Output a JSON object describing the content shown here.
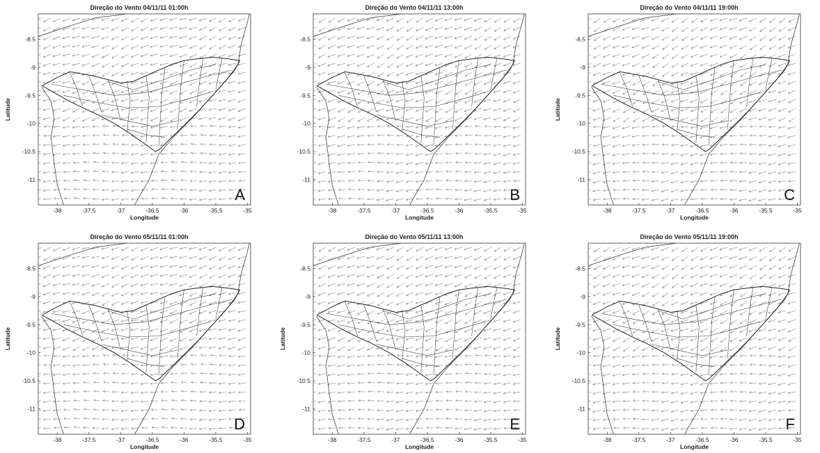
{
  "figure": {
    "panels": [
      {
        "title": "Direção do Vento 04/11/11 01:00h",
        "letter": "A",
        "ylabel": "Latitude",
        "xlabel": "Longitude",
        "rot": -8
      },
      {
        "title": "Direção do Vento 04/11/11 13:00h",
        "letter": "B",
        "ylabel": "",
        "xlabel": "Longitude",
        "rot": -14
      },
      {
        "title": "Direção do Vento 04/11/11 19:00h",
        "letter": "C",
        "ylabel": "Latitude",
        "xlabel": "Longitude",
        "rot": -18
      },
      {
        "title": "Direção do Vento 05/11/11 01:00h",
        "letter": "D",
        "ylabel": "Latitude",
        "xlabel": "Longitude",
        "rot": -6
      },
      {
        "title": "Direção do Vento 05/11/11 13:00h",
        "letter": "E",
        "ylabel": "Latitude",
        "xlabel": "Longitude",
        "rot": -12
      },
      {
        "title": "Direção do Vento 05/11/11 19:00h",
        "letter": "F",
        "ylabel": "Latitude",
        "xlabel": "Longitude",
        "rot": -16
      }
    ],
    "x_ticks": [
      "-38",
      "-37.5",
      "-37",
      "-36.5",
      "-36",
      "-35.5",
      "-35"
    ],
    "y_ticks": [
      "-8.5",
      "-9",
      "-9.5",
      "-10",
      "-10.5",
      "-11"
    ],
    "x_range": [
      -38.3,
      -34.95
    ],
    "y_range": [
      -11.45,
      -8.05
    ],
    "colors": {
      "arrows": "#9a9a9a",
      "state_border": "#222222",
      "coastline": "#555555"
    }
  }
}
